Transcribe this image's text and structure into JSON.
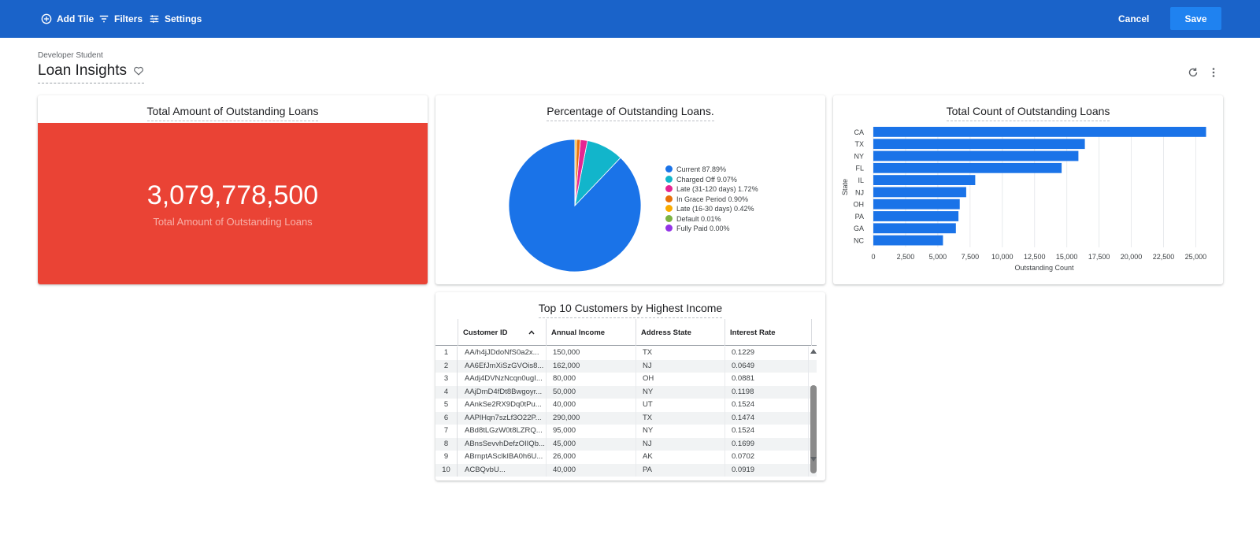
{
  "toolbar": {
    "add_tile": "Add Tile",
    "filters": "Filters",
    "settings": "Settings",
    "cancel": "Cancel",
    "save": "Save"
  },
  "header": {
    "owner": "Developer Student",
    "title": "Loan Insights"
  },
  "tiles": {
    "single_value": {
      "title": "Total Amount of Outstanding Loans",
      "value": "3,079,778,500",
      "label": "Total Amount of Outstanding Loans",
      "color": "#ea4335"
    },
    "pie": {
      "title": "Percentage of Outstanding Loans."
    },
    "bar": {
      "title": "Total Count of Outstanding Loans"
    },
    "table": {
      "title": "Top 10 Customers by Highest Income",
      "columns": [
        "Customer ID",
        "Annual Income",
        "Address State",
        "Interest Rate"
      ],
      "rows": [
        [
          "1",
          "AA/h4jJDdoNfS0a2x...",
          "150,000",
          "TX",
          "0.1229"
        ],
        [
          "2",
          "AA6EfJmXiSzGVOis8...",
          "162,000",
          "NJ",
          "0.0649"
        ],
        [
          "3",
          "AAdj4DVNzNcqn0ugI...",
          "80,000",
          "OH",
          "0.0881"
        ],
        [
          "4",
          "AAjDmD4fDt8Bwgoyr...",
          "50,000",
          "NY",
          "0.1198"
        ],
        [
          "5",
          "AAnkSe2RX9Dq0tPu...",
          "40,000",
          "UT",
          "0.1524"
        ],
        [
          "6",
          "AAPlHqn7szLf3O22P...",
          "290,000",
          "TX",
          "0.1474"
        ],
        [
          "7",
          "ABd8tLGzW0t8LZRQ...",
          "95,000",
          "NY",
          "0.1524"
        ],
        [
          "8",
          "ABnsSevvhDefzOIIQb...",
          "45,000",
          "NJ",
          "0.1699"
        ],
        [
          "9",
          "ABrnptASclkIBA0h6U...",
          "26,000",
          "AK",
          "0.0702"
        ],
        [
          "10",
          "ACBQvbU...",
          "40,000",
          "PA",
          "0.0919"
        ]
      ]
    }
  },
  "chart_data": [
    {
      "type": "pie",
      "title": "Percentage of Outstanding Loans.",
      "slices": [
        {
          "label": "Current",
          "value": 87.89,
          "display": "Current 87.89%",
          "color": "#1a73e8"
        },
        {
          "label": "Charged Off",
          "value": 9.07,
          "display": "Charged Off 9.07%",
          "color": "#12b5cb"
        },
        {
          "label": "Late (31-120 days)",
          "value": 1.72,
          "display": "Late (31-120 days) 1.72%",
          "color": "#e52592"
        },
        {
          "label": "In Grace Period",
          "value": 0.9,
          "display": "In Grace Period 0.90%",
          "color": "#e8710a"
        },
        {
          "label": "Late (16-30 days)",
          "value": 0.42,
          "display": "Late (16-30 days) 0.42%",
          "color": "#f9ab00"
        },
        {
          "label": "Default",
          "value": 0.01,
          "display": "Default 0.01%",
          "color": "#7cb342"
        },
        {
          "label": "Fully Paid",
          "value": 0.0,
          "display": "Fully Paid 0.00%",
          "color": "#9334e6"
        }
      ],
      "legend": "right"
    },
    {
      "type": "bar",
      "orientation": "horizontal",
      "title": "Total Count of Outstanding Loans",
      "categories": [
        "CA",
        "TX",
        "NY",
        "FL",
        "IL",
        "NJ",
        "OH",
        "PA",
        "GA",
        "NC"
      ],
      "values": [
        25800,
        16400,
        15900,
        14600,
        7900,
        7200,
        6700,
        6600,
        6400,
        5400
      ],
      "xlabel": "Outstanding Count",
      "ylabel": "State",
      "xlim": [
        0,
        26500
      ],
      "xticks": [
        "0",
        "2,500",
        "5,000",
        "7,500",
        "10,000",
        "12,500",
        "15,000",
        "17,500",
        "20,000",
        "22,500",
        "25,000"
      ],
      "grid": true,
      "color": "#1a73e8"
    }
  ]
}
